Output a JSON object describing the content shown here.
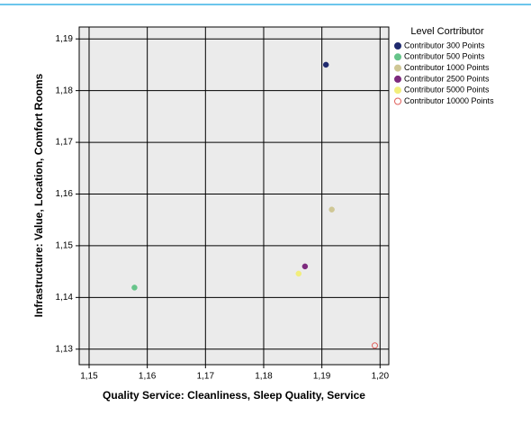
{
  "chart_data": {
    "type": "scatter",
    "xlabel": "Quality Service: Cleanliness, Sleep Quality, Service",
    "ylabel": "Infrastructure: Value, Location, Comfort Rooms",
    "legend_title": "Level Cortributor",
    "legend": "right",
    "grid": true,
    "xlim": [
      1.1483,
      1.2015
    ],
    "ylim": [
      1.127,
      1.1923
    ],
    "xticks": [
      {
        "value": 1.15,
        "label": "1,15"
      },
      {
        "value": 1.16,
        "label": "1,16"
      },
      {
        "value": 1.17,
        "label": "1,17"
      },
      {
        "value": 1.18,
        "label": "1,18"
      },
      {
        "value": 1.19,
        "label": "1,19"
      },
      {
        "value": 1.2,
        "label": "1,20"
      }
    ],
    "yticks": [
      {
        "value": 1.13,
        "label": "1,13"
      },
      {
        "value": 1.14,
        "label": "1,14"
      },
      {
        "value": 1.15,
        "label": "1,15"
      },
      {
        "value": 1.16,
        "label": "1,16"
      },
      {
        "value": 1.17,
        "label": "1,17"
      },
      {
        "value": 1.18,
        "label": "1,18"
      },
      {
        "value": 1.19,
        "label": "1,19"
      }
    ],
    "series": [
      {
        "name": "Contributor 300 Points",
        "color": "#1f2a6e",
        "marker": "filled",
        "x": [
          1.1907
        ],
        "values": [
          1.185
        ]
      },
      {
        "name": "Contributor 500 Points",
        "color": "#66c48a",
        "marker": "filled",
        "x": [
          1.1578
        ],
        "values": [
          1.1419
        ]
      },
      {
        "name": "Contributor 1000 Points",
        "color": "#cfc795",
        "marker": "filled",
        "x": [
          1.1917
        ],
        "values": [
          1.157
        ]
      },
      {
        "name": "Contributor 2500 Points",
        "color": "#7d2a7e",
        "marker": "filled",
        "x": [
          1.1871
        ],
        "values": [
          1.146
        ]
      },
      {
        "name": "Contributor 5000 Points",
        "color": "#f2ee7c",
        "marker": "filled",
        "x": [
          1.186
        ],
        "values": [
          1.1446
        ]
      },
      {
        "name": "Contributor 10000 Points",
        "color": "#e0605c",
        "marker": "open",
        "x": [
          1.1991
        ],
        "values": [
          1.1307
        ]
      }
    ]
  }
}
